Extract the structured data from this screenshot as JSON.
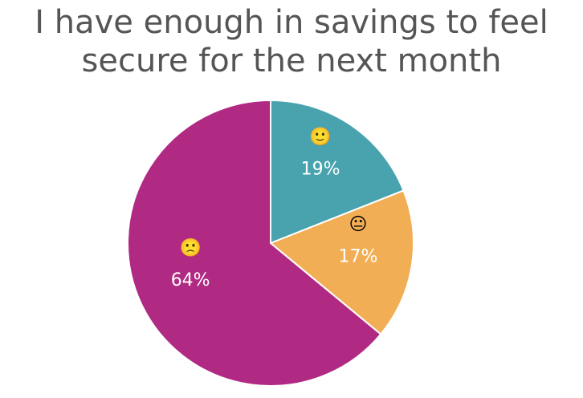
{
  "chart_data": {
    "type": "pie",
    "title": "I have enough in savings to feel secure for the next month",
    "categories": [
      "🙂",
      "😐",
      "🙁"
    ],
    "values": [
      19,
      17,
      64
    ],
    "value_labels": [
      "19%",
      "17%",
      "64%"
    ],
    "colors": [
      "#48a3ae",
      "#f2ae55",
      "#b02a83"
    ]
  }
}
